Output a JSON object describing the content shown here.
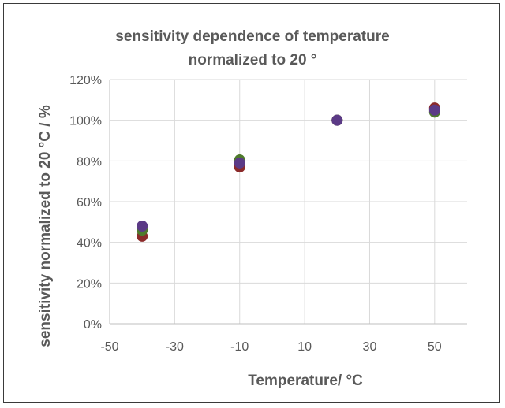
{
  "chart_data": {
    "type": "scatter",
    "title_line1": "sensitivity dependence of temperature",
    "title_line2": "normalized to 20 °",
    "xlabel": "Temperature/ °C",
    "ylabel": "sensitivity normalized to 20 °C / %",
    "xlim": [
      -50,
      60
    ],
    "ylim": [
      0,
      120
    ],
    "x_ticks": [
      -50,
      -30,
      -10,
      10,
      30,
      50
    ],
    "x_tick_labels": [
      "-50",
      "-30",
      "-10",
      "10",
      "30",
      "50"
    ],
    "y_ticks": [
      0,
      20,
      40,
      60,
      80,
      100,
      120
    ],
    "y_tick_labels": [
      "0%",
      "20%",
      "40%",
      "60%",
      "80%",
      "100%",
      "120%"
    ],
    "x_gridlines": [
      -30,
      -10,
      10,
      30,
      50
    ],
    "grid": true,
    "legend": "none",
    "series": [
      {
        "color": "#8b2a2a",
        "points": [
          [
            -40,
            43
          ],
          [
            -10,
            77
          ],
          [
            20,
            100
          ],
          [
            50,
            106
          ]
        ]
      },
      {
        "color": "#4e7a2c",
        "points": [
          [
            -40,
            46
          ],
          [
            -10,
            80.5
          ],
          [
            20,
            100
          ],
          [
            50,
            104
          ]
        ]
      },
      {
        "color": "#5b3a86",
        "points": [
          [
            -40,
            48
          ],
          [
            -10,
            79
          ],
          [
            20,
            100
          ],
          [
            50,
            105
          ]
        ]
      }
    ]
  }
}
